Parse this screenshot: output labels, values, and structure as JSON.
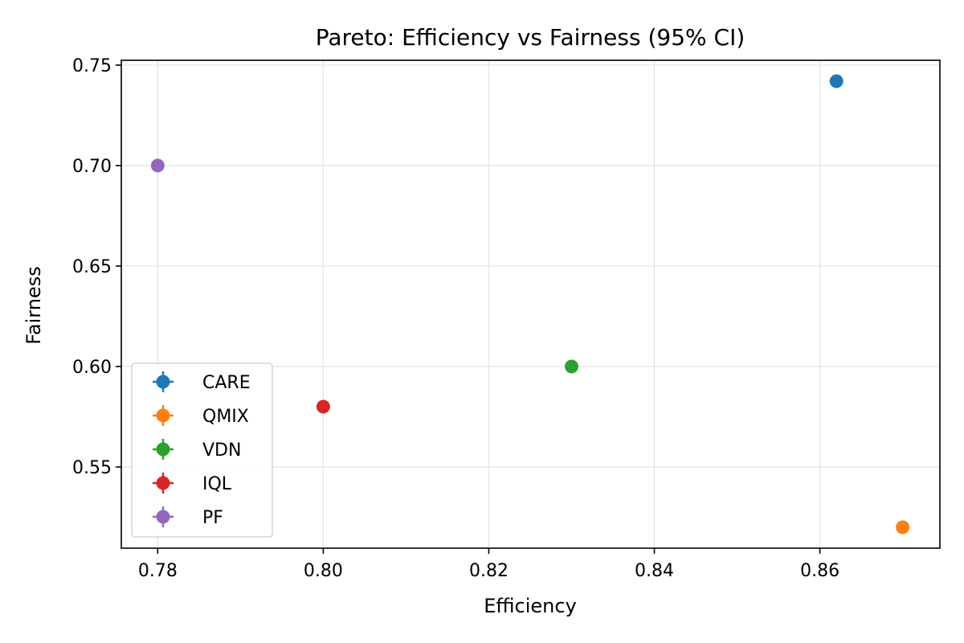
{
  "chart_data": {
    "type": "scatter",
    "title": "Pareto: Efficiency vs Fairness (95% CI)",
    "xlabel": "Efficiency",
    "ylabel": "Fairness",
    "xlim": [
      0.7756,
      0.8745
    ],
    "ylim": [
      0.5096,
      0.7524
    ],
    "xticks": [
      0.78,
      0.8,
      0.82,
      0.84,
      0.86
    ],
    "xtick_labels": [
      "0.78",
      "0.80",
      "0.82",
      "0.84",
      "0.86"
    ],
    "yticks": [
      0.55,
      0.6,
      0.65,
      0.7,
      0.75
    ],
    "ytick_labels": [
      "0.55",
      "0.60",
      "0.65",
      "0.70",
      "0.75"
    ],
    "grid": true,
    "legend_position": "lower-left",
    "series": [
      {
        "name": "CARE",
        "x": 0.862,
        "y": 0.742,
        "color": "#1f77b4"
      },
      {
        "name": "QMIX",
        "x": 0.87,
        "y": 0.52,
        "color": "#ff7f0e"
      },
      {
        "name": "VDN",
        "x": 0.83,
        "y": 0.6,
        "color": "#2ca02c"
      },
      {
        "name": "IQL",
        "x": 0.8,
        "y": 0.58,
        "color": "#d62728"
      },
      {
        "name": "PF",
        "x": 0.78,
        "y": 0.7,
        "color": "#9467bd"
      }
    ]
  }
}
